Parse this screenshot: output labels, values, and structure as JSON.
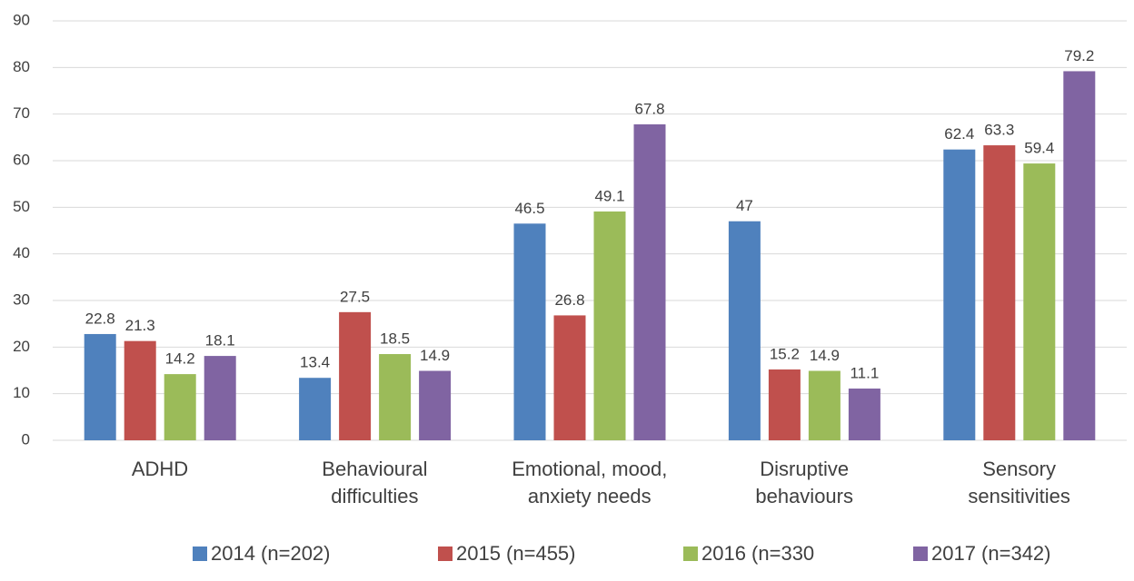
{
  "chart_data": {
    "type": "bar",
    "categories": [
      "ADHD",
      "Behavioural\ndifficulties",
      "Emotional, mood,\nanxiety needs",
      "Disruptive\nbehaviours",
      "Sensory\nsensitivities"
    ],
    "series": [
      {
        "name": "2014 (n=202)",
        "color": "#4f81bd",
        "values": [
          22.8,
          13.4,
          46.5,
          47,
          62.4
        ]
      },
      {
        "name": "2015 (n=455)",
        "color": "#c0504d",
        "values": [
          21.3,
          27.5,
          26.8,
          15.2,
          63.3
        ]
      },
      {
        "name": "2016 (n=330",
        "color": "#9bbb59",
        "values": [
          14.2,
          18.5,
          49.1,
          14.9,
          59.4
        ]
      },
      {
        "name": "2017 (n=342)",
        "color": "#8064a2",
        "values": [
          18.1,
          14.9,
          67.8,
          11.1,
          79.2
        ]
      }
    ],
    "ylim": [
      0,
      90
    ],
    "yticks": [
      0,
      10,
      20,
      30,
      40,
      50,
      60,
      70,
      80,
      90
    ],
    "grid": true,
    "legend": "bottom"
  }
}
